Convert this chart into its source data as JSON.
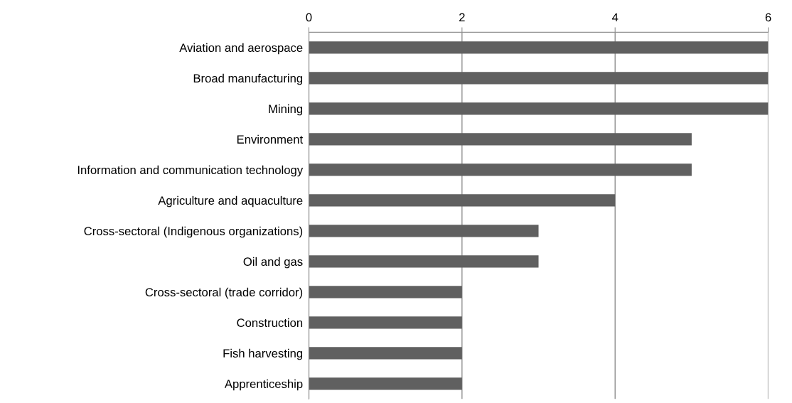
{
  "chart_data": {
    "type": "bar",
    "orientation": "horizontal",
    "categories": [
      "Aviation and aerospace",
      "Broad manufacturing",
      "Mining",
      "Environment",
      "Information and communication technology",
      "Agriculture and aquaculture",
      "Cross-sectoral (Indigenous organizations)",
      "Oil and gas",
      "Cross-sectoral (trade corridor)",
      "Construction",
      "Fish harvesting",
      "Apprenticeship"
    ],
    "values": [
      6,
      6,
      6,
      5,
      5,
      4,
      3,
      3,
      2,
      2,
      2,
      2
    ],
    "color": "#606060",
    "xlim": [
      0,
      6
    ],
    "xticks": [
      0,
      2,
      4,
      6
    ],
    "grid": "x"
  }
}
